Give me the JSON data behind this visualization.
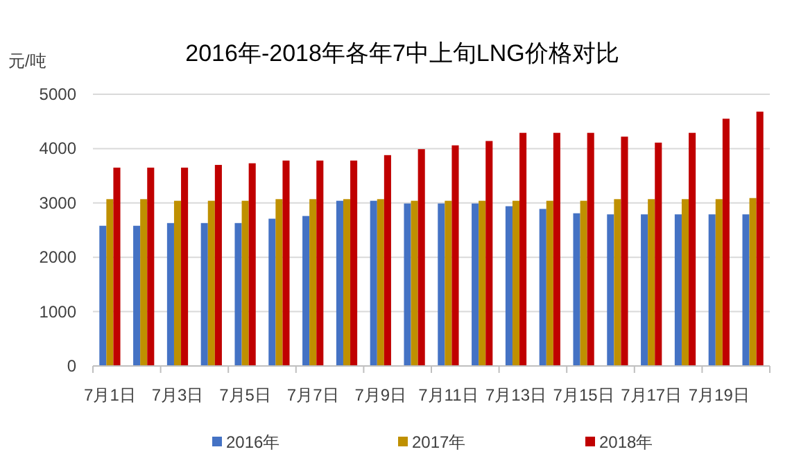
{
  "chart_data": {
    "type": "bar",
    "title": "2016年-2018年各年7中上旬LNG价格对比",
    "ylabel": "元/吨",
    "categories": [
      "7月1日",
      null,
      "7月3日",
      null,
      "7月5日",
      null,
      "7月7日",
      null,
      "7月9日",
      null,
      "7月11日",
      null,
      "7月13日",
      null,
      "7月15日",
      null,
      "7月17日",
      null,
      "7月19日",
      null
    ],
    "series": [
      {
        "name": "2016年",
        "color": "#4472c4",
        "values": [
          2580,
          2580,
          2630,
          2630,
          2630,
          2710,
          2760,
          3040,
          3040,
          2990,
          2990,
          2990,
          2940,
          2890,
          2810,
          2790,
          2790,
          2790,
          2790,
          2790
        ]
      },
      {
        "name": "2017年",
        "color": "#bf9000",
        "values": [
          3070,
          3070,
          3040,
          3040,
          3040,
          3070,
          3070,
          3070,
          3070,
          3040,
          3040,
          3040,
          3040,
          3040,
          3040,
          3070,
          3070,
          3070,
          3070,
          3090
        ]
      },
      {
        "name": "2018年",
        "color": "#c00000",
        "values": [
          3650,
          3650,
          3650,
          3700,
          3730,
          3780,
          3780,
          3780,
          3880,
          3990,
          4060,
          4140,
          4290,
          4290,
          4290,
          4220,
          4110,
          4290,
          4550,
          4680
        ]
      }
    ],
    "ylim": [
      0,
      5000
    ],
    "yticks": [
      0,
      1000,
      2000,
      3000,
      4000,
      5000
    ],
    "grid": "y",
    "legend": "bottom"
  }
}
